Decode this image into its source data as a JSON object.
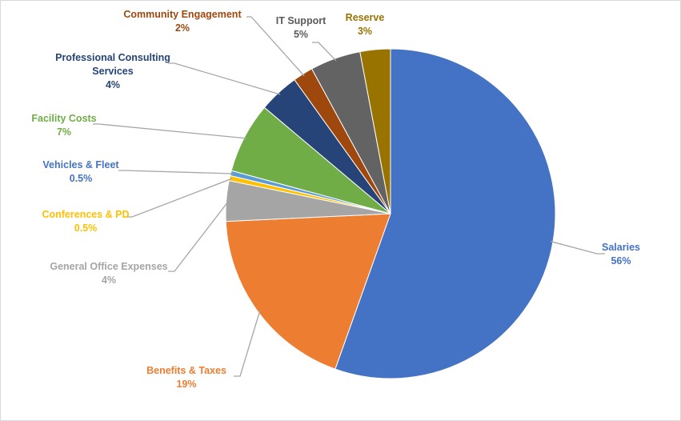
{
  "chart_data": {
    "type": "pie",
    "title": "",
    "slices": [
      {
        "name": "Salaries",
        "value_label": "56%",
        "value": 56,
        "color": "#4472C4"
      },
      {
        "name": "Benefits & Taxes",
        "value_label": "19%",
        "value": 19,
        "color": "#ED7D31"
      },
      {
        "name": "General Office Expenses",
        "value_label": "4%",
        "value": 4,
        "color": "#A5A5A5"
      },
      {
        "name": "Conferences & PD",
        "value_label": "0.5%",
        "value": 0.5,
        "color": "#FFC000"
      },
      {
        "name": "Vehicles & Fleet",
        "value_label": "0.5%",
        "value": 0.5,
        "color": "#5B9BD5"
      },
      {
        "name": "Facility Costs",
        "value_label": "7%",
        "value": 7,
        "color": "#70AD47"
      },
      {
        "name": "Professional Consulting Services",
        "value_label": "4%",
        "value": 4,
        "color": "#264478"
      },
      {
        "name": "Community Engagement",
        "value_label": "2%",
        "value": 2,
        "color": "#9E480E"
      },
      {
        "name": "IT Support",
        "value_label": "5%",
        "value": 5,
        "color": "#636363"
      },
      {
        "name": "Reserve",
        "value_label": "3%",
        "value": 3,
        "color": "#997300"
      }
    ],
    "label_colors": {
      "Salaries": "#4472C4",
      "Benefits & Taxes": "#ED7D31",
      "General Office Expenses": "#A5A5A5",
      "Conferences & PD": "#FFC000",
      "Vehicles & Fleet": "#4472C4",
      "Facility Costs": "#70AD47",
      "Professional Consulting Services": "#264478",
      "Community Engagement": "#9E480E",
      "IT Support": "#595959",
      "Reserve": "#997300"
    },
    "start": "12 o'clock",
    "direction": "clockwise",
    "legend": "none",
    "leader_lines": true
  }
}
